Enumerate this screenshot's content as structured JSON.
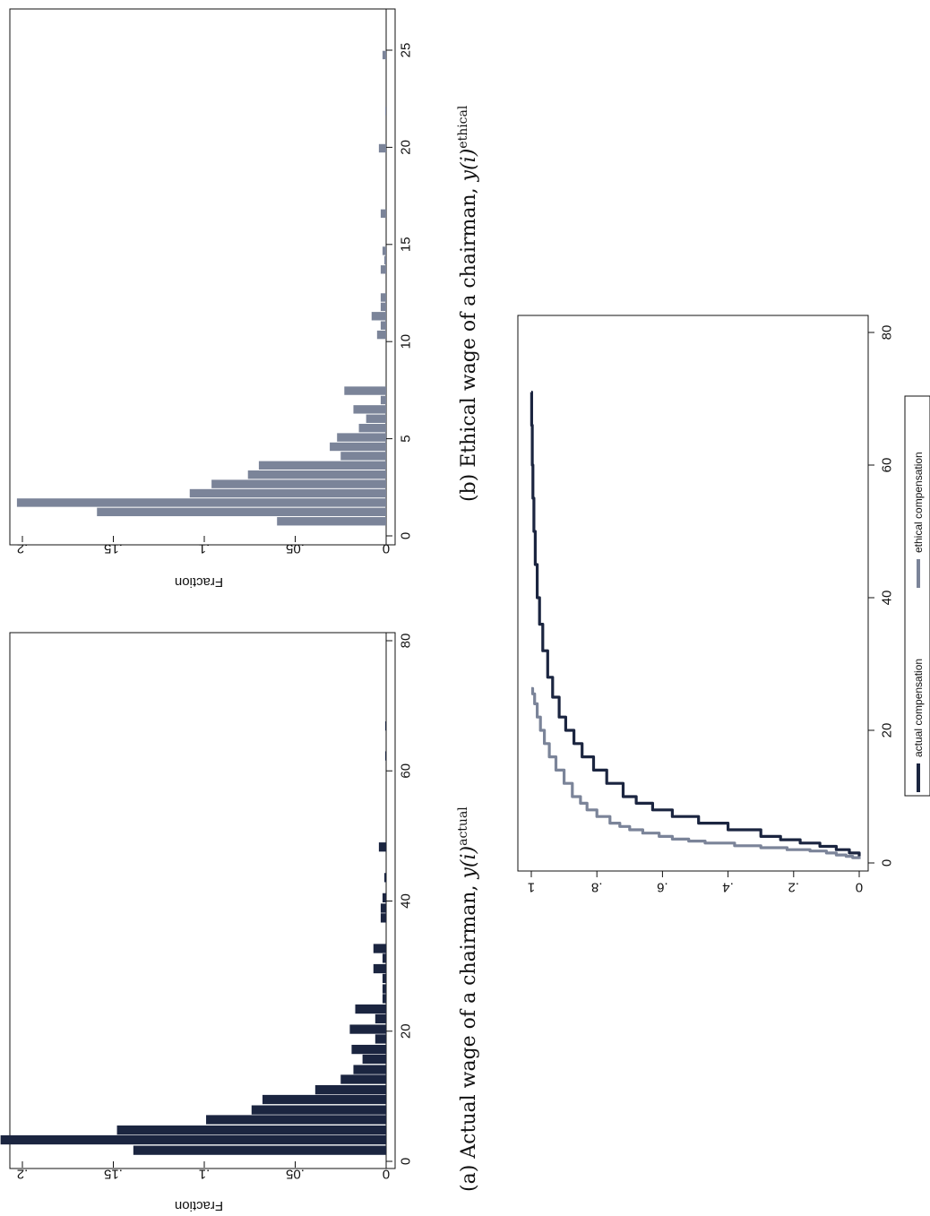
{
  "colors": {
    "actual": "#1b2540",
    "ethical": "#7b8499",
    "axis": "#111111",
    "frame": "#111111",
    "background": "#ffffff"
  },
  "chart_data": [
    {
      "id": "hist_actual",
      "type": "bar",
      "ylabel": "Fraction",
      "xlim": [
        0,
        80
      ],
      "ylim": [
        0,
        0.2
      ],
      "xticks": [
        "0",
        "20",
        "40",
        "60",
        "80"
      ],
      "xtick_values": [
        0,
        20,
        40,
        60,
        80
      ],
      "yticks": [
        "0",
        ".05",
        ".1",
        ".15",
        ".2"
      ],
      "ytick_values": [
        0,
        0.05,
        0.1,
        0.15,
        0.2
      ],
      "bin_width": 1.55,
      "bins": [
        {
          "x": 1.7,
          "y": 0.139
        },
        {
          "x": 3.3,
          "y": 0.212
        },
        {
          "x": 4.8,
          "y": 0.148
        },
        {
          "x": 6.4,
          "y": 0.099
        },
        {
          "x": 7.9,
          "y": 0.074
        },
        {
          "x": 9.5,
          "y": 0.068
        },
        {
          "x": 11.0,
          "y": 0.039
        },
        {
          "x": 12.6,
          "y": 0.025
        },
        {
          "x": 14.1,
          "y": 0.018
        },
        {
          "x": 15.7,
          "y": 0.013
        },
        {
          "x": 17.2,
          "y": 0.019
        },
        {
          "x": 18.8,
          "y": 0.006
        },
        {
          "x": 20.3,
          "y": 0.02
        },
        {
          "x": 21.9,
          "y": 0.006
        },
        {
          "x": 23.4,
          "y": 0.017
        },
        {
          "x": 25.0,
          "y": 0.002
        },
        {
          "x": 26.5,
          "y": 0.002
        },
        {
          "x": 28.1,
          "y": 0.002
        },
        {
          "x": 29.6,
          "y": 0.007
        },
        {
          "x": 31.2,
          "y": 0.002
        },
        {
          "x": 32.7,
          "y": 0.007
        },
        {
          "x": 37.4,
          "y": 0.003
        },
        {
          "x": 38.9,
          "y": 0.003
        },
        {
          "x": 40.5,
          "y": 0.002
        },
        {
          "x": 43.6,
          "y": 0.001
        },
        {
          "x": 48.3,
          "y": 0.004
        },
        {
          "x": 62.3,
          "y": 0.0005
        },
        {
          "x": 66.9,
          "y": 0.0005
        }
      ]
    },
    {
      "id": "hist_ethical",
      "type": "bar",
      "ylabel": "Fraction",
      "xlim": [
        0,
        25
      ],
      "ylim": [
        0,
        0.2
      ],
      "xticks": [
        "0",
        "5",
        "10",
        "15",
        "20",
        "25"
      ],
      "xtick_values": [
        0,
        5,
        10,
        15,
        20,
        25
      ],
      "yticks": [
        "0",
        ".05",
        ".1",
        ".15",
        ".2"
      ],
      "ytick_values": [
        0,
        0.05,
        0.1,
        0.15,
        0.2
      ],
      "bin_width": 0.48,
      "bins": [
        {
          "x": 0.75,
          "y": 0.06
        },
        {
          "x": 1.23,
          "y": 0.159
        },
        {
          "x": 1.71,
          "y": 0.203
        },
        {
          "x": 2.19,
          "y": 0.108
        },
        {
          "x": 2.67,
          "y": 0.096
        },
        {
          "x": 3.15,
          "y": 0.076
        },
        {
          "x": 3.63,
          "y": 0.07
        },
        {
          "x": 4.11,
          "y": 0.025
        },
        {
          "x": 4.59,
          "y": 0.031
        },
        {
          "x": 5.07,
          "y": 0.027
        },
        {
          "x": 5.55,
          "y": 0.015
        },
        {
          "x": 6.03,
          "y": 0.011
        },
        {
          "x": 6.51,
          "y": 0.018
        },
        {
          "x": 6.99,
          "y": 0.003
        },
        {
          "x": 7.47,
          "y": 0.023
        },
        {
          "x": 10.35,
          "y": 0.005
        },
        {
          "x": 10.83,
          "y": 0.003
        },
        {
          "x": 11.31,
          "y": 0.008
        },
        {
          "x": 11.79,
          "y": 0.003
        },
        {
          "x": 12.27,
          "y": 0.003
        },
        {
          "x": 13.71,
          "y": 0.003
        },
        {
          "x": 14.19,
          "y": 0.001
        },
        {
          "x": 14.67,
          "y": 0.002
        },
        {
          "x": 16.59,
          "y": 0.003
        },
        {
          "x": 19.95,
          "y": 0.004
        },
        {
          "x": 21.87,
          "y": 0.0005
        },
        {
          "x": 24.75,
          "y": 0.002
        }
      ]
    },
    {
      "id": "cdf",
      "type": "line",
      "xlim": [
        0,
        80
      ],
      "ylim": [
        0,
        1
      ],
      "xticks": [
        "0",
        "20",
        "40",
        "60",
        "80"
      ],
      "xtick_values": [
        0,
        20,
        40,
        60,
        80
      ],
      "yticks": [
        "0",
        ".2",
        ".4",
        ".6",
        ".8",
        "1"
      ],
      "ytick_values": [
        0,
        0.2,
        0.4,
        0.6,
        0.8,
        1
      ],
      "legend": "bottom",
      "series": [
        {
          "name": "actual compensation",
          "color_key": "actual",
          "step": true,
          "x": [
            1.0,
            1.5,
            2.0,
            2.5,
            3.0,
            3.5,
            4.0,
            5.0,
            6.0,
            7.0,
            8.0,
            9.0,
            10.0,
            12.0,
            14.0,
            16.0,
            18.0,
            20.0,
            22.0,
            25.0,
            28.0,
            32.0,
            36.0,
            40.0,
            45.0,
            50.0,
            55.0,
            60.0,
            66.0,
            71.0
          ],
          "y": [
            0.0,
            0.03,
            0.07,
            0.12,
            0.18,
            0.24,
            0.3,
            0.4,
            0.49,
            0.57,
            0.63,
            0.68,
            0.72,
            0.77,
            0.81,
            0.845,
            0.87,
            0.895,
            0.915,
            0.935,
            0.95,
            0.965,
            0.975,
            0.982,
            0.988,
            0.992,
            0.995,
            0.997,
            0.999,
            1.0
          ]
        },
        {
          "name": "ethical compensation",
          "color_key": "ethical",
          "step": true,
          "x": [
            0.6,
            0.8,
            1.0,
            1.2,
            1.5,
            1.8,
            2.0,
            2.3,
            2.6,
            3.0,
            3.3,
            3.6,
            4.0,
            4.5,
            5.0,
            5.5,
            6.0,
            7.0,
            8.0,
            9.0,
            10.0,
            12.0,
            14.0,
            16.0,
            18.0,
            20.0,
            22.0,
            24.0,
            25.5,
            26.3
          ],
          "y": [
            0.0,
            0.02,
            0.04,
            0.07,
            0.1,
            0.15,
            0.22,
            0.3,
            0.38,
            0.47,
            0.52,
            0.57,
            0.61,
            0.66,
            0.7,
            0.73,
            0.76,
            0.8,
            0.83,
            0.85,
            0.875,
            0.9,
            0.925,
            0.945,
            0.96,
            0.972,
            0.982,
            0.99,
            0.996,
            1.0
          ]
        }
      ]
    }
  ],
  "captions": {
    "a_text": "(a)  Actual wage of a chairman, ",
    "a_math": "y(i)",
    "a_sup": "actual",
    "b_text": "(b)  Ethical wage of a chairman, ",
    "b_math": "y(i)",
    "b_sup": "ethical"
  }
}
